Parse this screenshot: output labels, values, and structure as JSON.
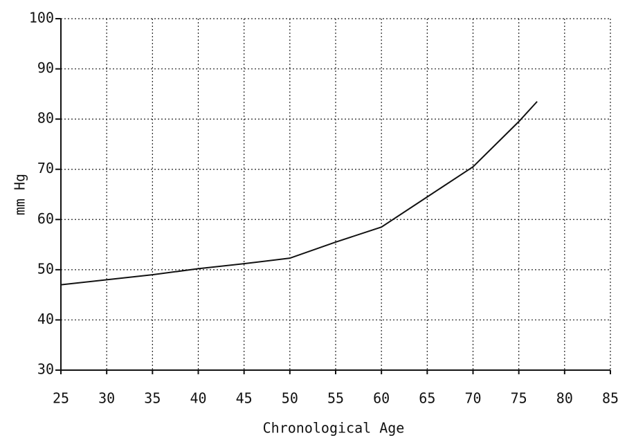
{
  "chart_data": {
    "type": "line",
    "x_label": "Chronological Age",
    "y_label": "mm Hg",
    "x": [
      25,
      30,
      35,
      40,
      45,
      50,
      55,
      60,
      65,
      70,
      75,
      77
    ],
    "series": [
      {
        "color": "#111111",
        "values": [
          47,
          48,
          49,
          50.2,
          51.2,
          52.3,
          55.5,
          58.5,
          64.5,
          70.5,
          79.5,
          83.5
        ]
      }
    ],
    "xlim": [
      25,
      85
    ],
    "xticks": [
      25,
      30,
      35,
      40,
      45,
      50,
      55,
      60,
      65,
      70,
      75,
      80,
      85
    ],
    "ylim": [
      30,
      100
    ],
    "yticks": [
      30,
      40,
      50,
      60,
      70,
      80,
      90,
      100
    ],
    "grid": true
  }
}
